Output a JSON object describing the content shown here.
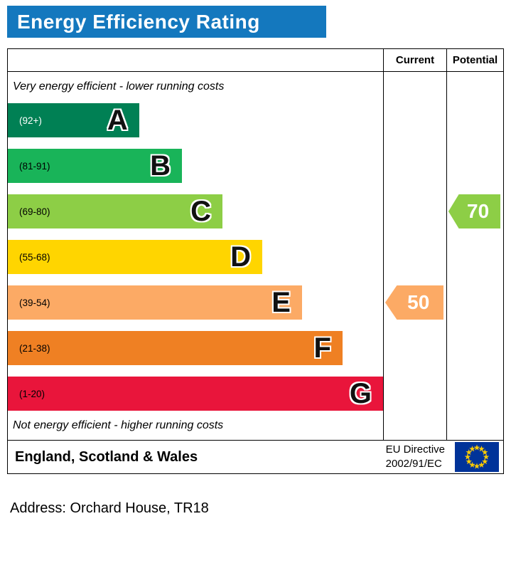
{
  "chart_data": {
    "type": "bar",
    "title": "Energy Efficiency Rating",
    "columns": {
      "current": "Current",
      "potential": "Potential"
    },
    "top_note": "Very energy efficient - lower running costs",
    "bottom_note": "Not energy efficient - higher running costs",
    "bands": [
      {
        "letter": "A",
        "range": "(92+)",
        "color": "#008054",
        "label_color": "#ffffff",
        "width_pct": 35
      },
      {
        "letter": "B",
        "range": "(81-91)",
        "color": "#19b459",
        "label_color": "#000000",
        "width_pct": 46.4
      },
      {
        "letter": "C",
        "range": "(69-80)",
        "color": "#8dce46",
        "label_color": "#000000",
        "width_pct": 57.2
      },
      {
        "letter": "D",
        "range": "(55-68)",
        "color": "#ffd500",
        "label_color": "#000000",
        "width_pct": 67.8
      },
      {
        "letter": "E",
        "range": "(39-54)",
        "color": "#fcaa65",
        "label_color": "#000000",
        "width_pct": 78.4
      },
      {
        "letter": "F",
        "range": "(21-38)",
        "color": "#ef8023",
        "label_color": "#000000",
        "width_pct": 89.2
      },
      {
        "letter": "G",
        "range": "(1-20)",
        "color": "#e9153b",
        "label_color": "#000000",
        "width_pct": 100
      }
    ],
    "current": {
      "value": 50,
      "band": "E",
      "band_index": 4,
      "color": "#fcaa65"
    },
    "potential": {
      "value": 70,
      "band": "C",
      "band_index": 2,
      "color": "#8dce46"
    }
  },
  "footer": {
    "region": "England, Scotland & Wales",
    "directive_line1": "EU Directive",
    "directive_line2": "2002/91/EC"
  },
  "address": "Address: Orchard House, TR18",
  "colors": {
    "header_bg": "#1478be",
    "header_text": "#ffffff",
    "border": "#000000",
    "flag_blue": "#003399",
    "flag_star": "#ffcc00"
  }
}
